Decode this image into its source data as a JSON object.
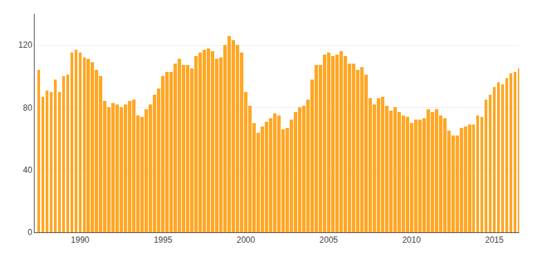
{
  "chart_data": {
    "type": "bar",
    "x": [
      1987.5,
      1987.75,
      1988,
      1988.25,
      1988.5,
      1988.75,
      1989,
      1989.25,
      1989.5,
      1989.75,
      1990,
      1990.25,
      1990.5,
      1990.75,
      1991,
      1991.25,
      1991.5,
      1991.75,
      1992,
      1992.25,
      1992.5,
      1992.75,
      1993,
      1993.25,
      1993.5,
      1993.75,
      1994,
      1994.25,
      1994.5,
      1994.75,
      1995,
      1995.25,
      1995.5,
      1995.75,
      1996,
      1996.25,
      1996.5,
      1996.75,
      1997,
      1997.25,
      1997.5,
      1997.75,
      1998,
      1998.25,
      1998.5,
      1998.75,
      1999,
      1999.25,
      1999.5,
      1999.75,
      2000,
      2000.25,
      2000.5,
      2000.75,
      2001,
      2001.25,
      2001.5,
      2001.75,
      2002,
      2002.25,
      2002.5,
      2002.75,
      2003,
      2003.25,
      2003.5,
      2003.75,
      2004,
      2004.25,
      2004.5,
      2004.75,
      2005,
      2005.25,
      2005.5,
      2005.75,
      2006,
      2006.25,
      2006.5,
      2006.75,
      2007,
      2007.25,
      2007.5,
      2007.75,
      2008,
      2008.25,
      2008.5,
      2008.75,
      2009,
      2009.25,
      2009.5,
      2009.75,
      2010,
      2010.25,
      2010.5,
      2010.75,
      2011,
      2011.25,
      2011.5,
      2011.75,
      2012,
      2012.25,
      2012.5,
      2012.75,
      2013,
      2013.25,
      2013.5,
      2013.75,
      2014,
      2014.25,
      2014.5,
      2014.75,
      2015,
      2015.25,
      2015.5,
      2015.75,
      2016,
      2016.25,
      2016.5
    ],
    "values": [
      104,
      87,
      91,
      90,
      98,
      90,
      100,
      101,
      115,
      117,
      115,
      112,
      111,
      109,
      104,
      100,
      84,
      80,
      83,
      82,
      80,
      82,
      84,
      85,
      75,
      74,
      79,
      82,
      88,
      92,
      100,
      103,
      103,
      108,
      111,
      107,
      107,
      105,
      113,
      115,
      117,
      118,
      116,
      111,
      112,
      120,
      126,
      123,
      120,
      115,
      90,
      81,
      70,
      64,
      68,
      71,
      73,
      76,
      75,
      66,
      67,
      72,
      77,
      80,
      81,
      85,
      98,
      107,
      107,
      114,
      115,
      113,
      114,
      116,
      113,
      108,
      108,
      104,
      106,
      101,
      86,
      82,
      86,
      87,
      81,
      78,
      80,
      77,
      75,
      74,
      70,
      72,
      72,
      73,
      79,
      77,
      79,
      75,
      73,
      65,
      62,
      62,
      67,
      68,
      69,
      69,
      75,
      74,
      85,
      88,
      93,
      96,
      95,
      99,
      102,
      103,
      105
    ],
    "color": "#FFA726",
    "xlim": [
      1987.25,
      2016.5
    ],
    "xticks": [
      1990,
      1995,
      2000,
      2005,
      2010,
      2015
    ],
    "ylim": [
      0,
      140
    ],
    "yticks": [
      0,
      40,
      80,
      120
    ],
    "grid": true
  }
}
